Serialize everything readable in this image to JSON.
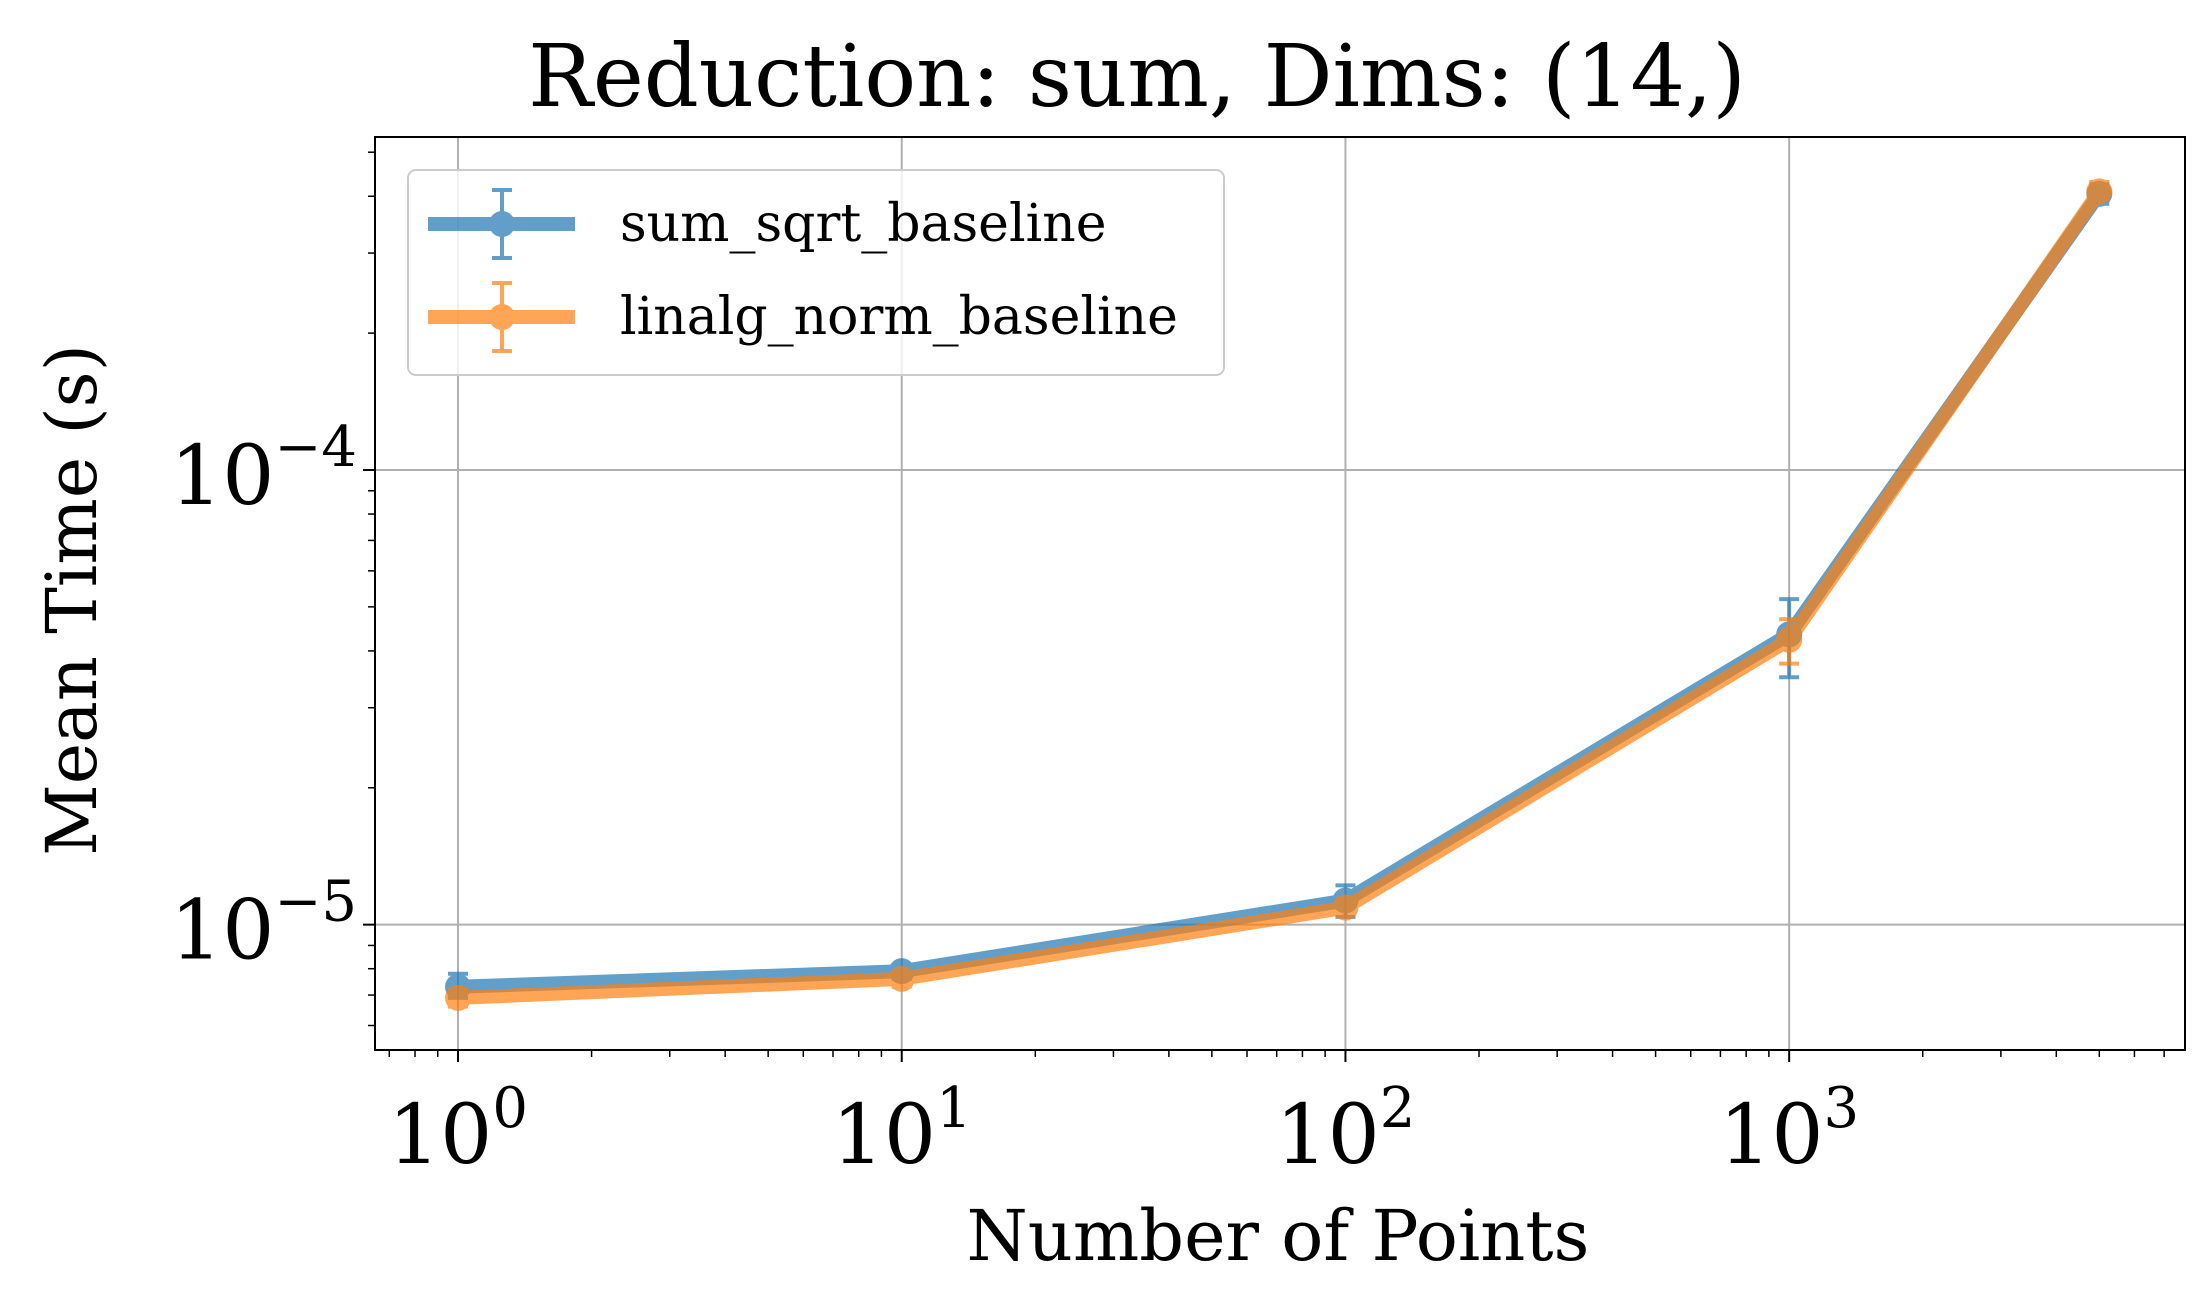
{
  "chart_data": {
    "type": "line",
    "title": "Reduction: sum, Dims: (14,)",
    "xlabel": "Number of Points",
    "ylabel": "Mean Time (s)",
    "xscale": "log",
    "yscale": "log",
    "xlim": [
      0.65,
      7800
    ],
    "ylim": [
      5.3e-06,
      0.00054
    ],
    "grid": true,
    "legend_position": "top-left",
    "x_ticks": [
      {
        "value": 1,
        "base": "10",
        "exp": "0"
      },
      {
        "value": 10,
        "base": "10",
        "exp": "1"
      },
      {
        "value": 100,
        "base": "10",
        "exp": "2"
      },
      {
        "value": 1000,
        "base": "10",
        "exp": "3"
      }
    ],
    "y_ticks": [
      {
        "value": 1e-05,
        "base": "10",
        "exp": "−5"
      },
      {
        "value": 0.0001,
        "base": "10",
        "exp": "−4"
      }
    ],
    "series": [
      {
        "name": "sum_sqrt_baseline",
        "color": "#1f77b4",
        "x": [
          1,
          10,
          100,
          1000,
          5000
        ],
        "y": [
          7.3e-06,
          7.9e-06,
          1.13e-05,
          4.35e-05,
          0.000405
        ],
        "err_low": [
          6.9e-06,
          7.6e-06,
          1.04e-05,
          3.5e-05,
          0.000385
        ],
        "err_high": [
          7.8e-06,
          8.1e-06,
          1.22e-05,
          5.2e-05,
          0.000425
        ]
      },
      {
        "name": "linalg_norm_baseline",
        "color": "#ff7f0e",
        "x": [
          1,
          10,
          100,
          1000,
          5000
        ],
        "y": [
          6.9e-06,
          7.6e-06,
          1.09e-05,
          4.23e-05,
          0.00041
        ],
        "err_low": [
          6.6e-06,
          7.3e-06,
          1.05e-05,
          3.75e-05,
          0.000395
        ],
        "err_high": [
          7.2e-06,
          7.9e-06,
          1.14e-05,
          4.7e-05,
          0.00043
        ]
      }
    ]
  }
}
